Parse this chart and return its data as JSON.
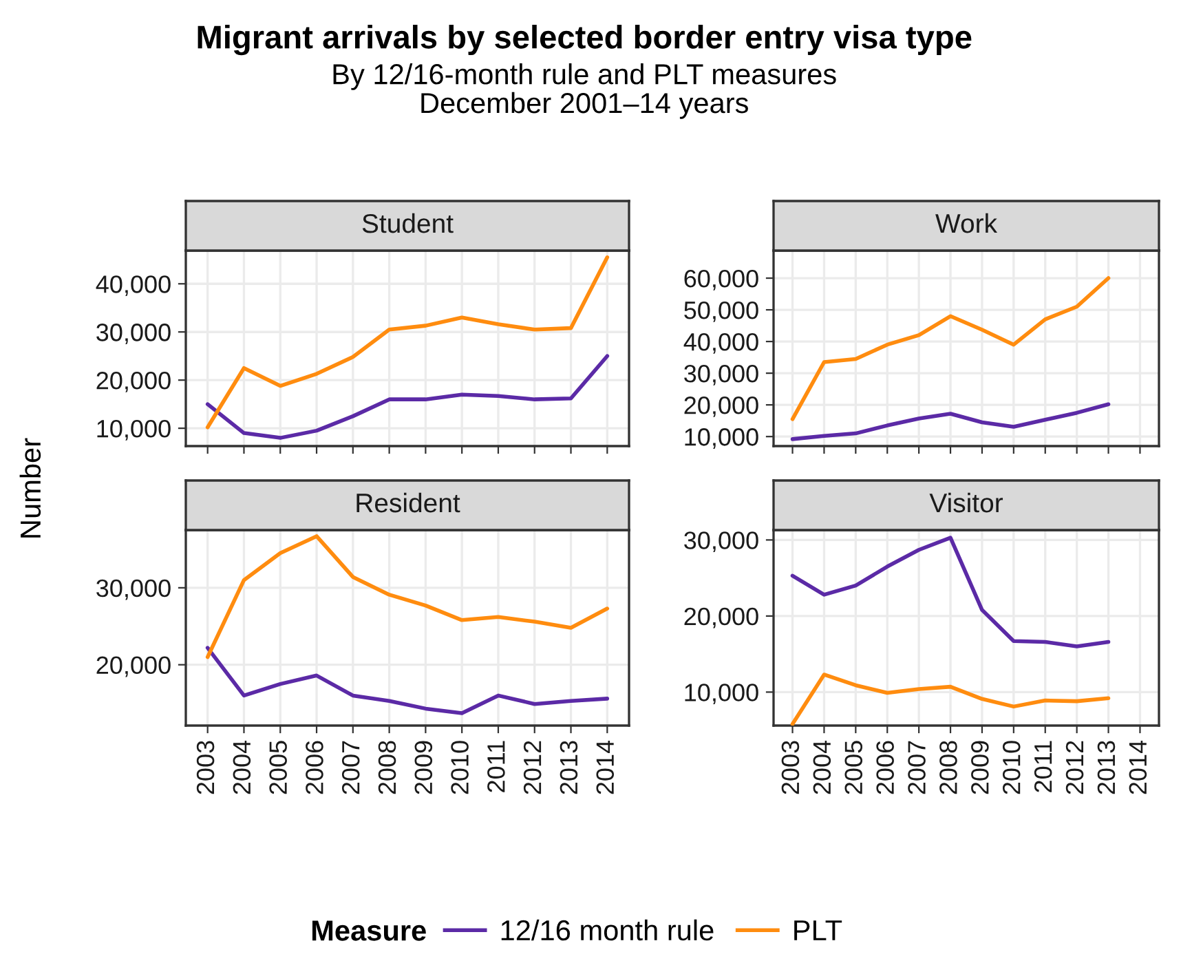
{
  "chart_data": [
    {
      "type": "line",
      "title": "Student",
      "annotations": [
        "Migrant arrivals by selected border entry visa type",
        "By 12/16-month rule and PLT measures\nDecember 2001–14 years"
      ],
      "categories": [
        "2003",
        "2004",
        "2005",
        "2006",
        "2007",
        "2008",
        "2009",
        "2010",
        "2011",
        "2012",
        "2013",
        "2014"
      ],
      "ylim": [
        6300,
        46900
      ],
      "yticks": [
        {
          "value": 10000,
          "label": "10,000"
        },
        {
          "value": 20000,
          "label": "20,000"
        },
        {
          "value": 30000,
          "label": "30,000"
        },
        {
          "value": 40000,
          "label": "40,000"
        }
      ],
      "tick_labels": "y",
      "grid": true,
      "legend": "bottom",
      "legend_title": "Measure",
      "ylabel": "Number",
      "series": [
        {
          "name": "12/16 month rule",
          "color": "#5b2aa6",
          "values": [
            15000,
            9000,
            8000,
            9500,
            12500,
            16000,
            16000,
            17000,
            16700,
            16000,
            16200,
            25000
          ]
        },
        {
          "name": "PLT",
          "color": "#ff8c0f",
          "values": [
            10200,
            22500,
            18800,
            21300,
            24800,
            30500,
            31300,
            33000,
            31600,
            30500,
            30800,
            45500
          ]
        }
      ]
    },
    {
      "type": "line",
      "title": "Work",
      "categories": [
        "2003",
        "2004",
        "2005",
        "2006",
        "2007",
        "2008",
        "2009",
        "2010",
        "2011",
        "2012",
        "2013",
        "2014"
      ],
      "ylim": [
        7000,
        68700
      ],
      "yticks": [
        {
          "value": 10000,
          "label": "10,000"
        },
        {
          "value": 20000,
          "label": "20,000"
        },
        {
          "value": 30000,
          "label": "30,000"
        },
        {
          "value": 40000,
          "label": "40,000"
        },
        {
          "value": 50000,
          "label": "50,000"
        },
        {
          "value": 60000,
          "label": "60,000"
        }
      ],
      "tick_labels": "y",
      "grid": true,
      "series": [
        {
          "color": "#5b2aa6",
          "values": [
            9200,
            10200,
            11000,
            13500,
            15700,
            17200,
            14500,
            13100,
            15300,
            17500,
            20200,
            null
          ]
        },
        {
          "color": "#ff8c0f",
          "values": [
            15500,
            33500,
            34500,
            39000,
            42000,
            48000,
            43700,
            39000,
            47000,
            51000,
            60000,
            null
          ]
        }
      ]
    },
    {
      "type": "line",
      "title": "Resident",
      "categories": [
        "2003",
        "2004",
        "2005",
        "2006",
        "2007",
        "2008",
        "2009",
        "2010",
        "2011",
        "2012",
        "2013",
        "2014"
      ],
      "ylim": [
        12100,
        37500
      ],
      "yticks": [
        {
          "value": 20000,
          "label": "20,000"
        },
        {
          "value": 30000,
          "label": "30,000"
        }
      ],
      "grid": true,
      "series": [
        {
          "color": "#5b2aa6",
          "values": [
            22200,
            16000,
            17500,
            18600,
            16000,
            15300,
            14300,
            13700,
            16000,
            14900,
            15300,
            15600
          ]
        },
        {
          "color": "#ff8c0f",
          "values": [
            21000,
            31000,
            34500,
            36700,
            31400,
            29100,
            27700,
            25800,
            26200,
            25600,
            24800,
            27300
          ]
        }
      ]
    },
    {
      "type": "line",
      "title": "Visitor",
      "categories": [
        "2003",
        "2004",
        "2005",
        "2006",
        "2007",
        "2008",
        "2009",
        "2010",
        "2011",
        "2012",
        "2013",
        "2014"
      ],
      "ylim": [
        5600,
        31300
      ],
      "yticks": [
        {
          "value": 10000,
          "label": "10,000"
        },
        {
          "value": 20000,
          "label": "20,000"
        },
        {
          "value": 30000,
          "label": "30,000"
        }
      ],
      "grid": true,
      "series": [
        {
          "color": "#5b2aa6",
          "values": [
            25300,
            22800,
            24000,
            26500,
            28700,
            30300,
            20800,
            16700,
            16600,
            16000,
            16600,
            null
          ]
        },
        {
          "color": "#ff8c0f",
          "values": [
            5800,
            12300,
            10900,
            9900,
            10400,
            10700,
            9100,
            8100,
            8900,
            8800,
            9200,
            null
          ]
        }
      ]
    }
  ]
}
